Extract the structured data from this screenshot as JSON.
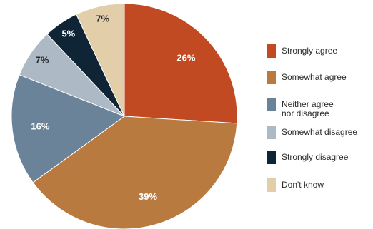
{
  "chart_data": {
    "type": "pie",
    "title": "",
    "start_angle_deg": 0,
    "direction": "clockwise",
    "legend_position": "right",
    "slices": [
      {
        "label": "Strongly agree",
        "value": 26,
        "value_label": "26%",
        "color": "#c14a23",
        "label_color": "#ffffff"
      },
      {
        "label": "Somewhat agree",
        "value": 39,
        "value_label": "39%",
        "color": "#b87a3f",
        "label_color": "#ffffff"
      },
      {
        "label": "Neither agree\nnor disagree",
        "value": 16,
        "value_label": "16%",
        "color": "#6b8399",
        "label_color": "#ffffff"
      },
      {
        "label": "Somewhat disagree",
        "value": 7,
        "value_label": "7%",
        "color": "#adb9c5",
        "label_color": "#2a2a2a"
      },
      {
        "label": "Strongly disagree",
        "value": 5,
        "value_label": "5%",
        "color": "#0f2536",
        "label_color": "#ffffff"
      },
      {
        "label": "Don't know",
        "value": 7,
        "value_label": "7%",
        "color": "#e2cfa9",
        "label_color": "#2a2a2a"
      }
    ]
  }
}
